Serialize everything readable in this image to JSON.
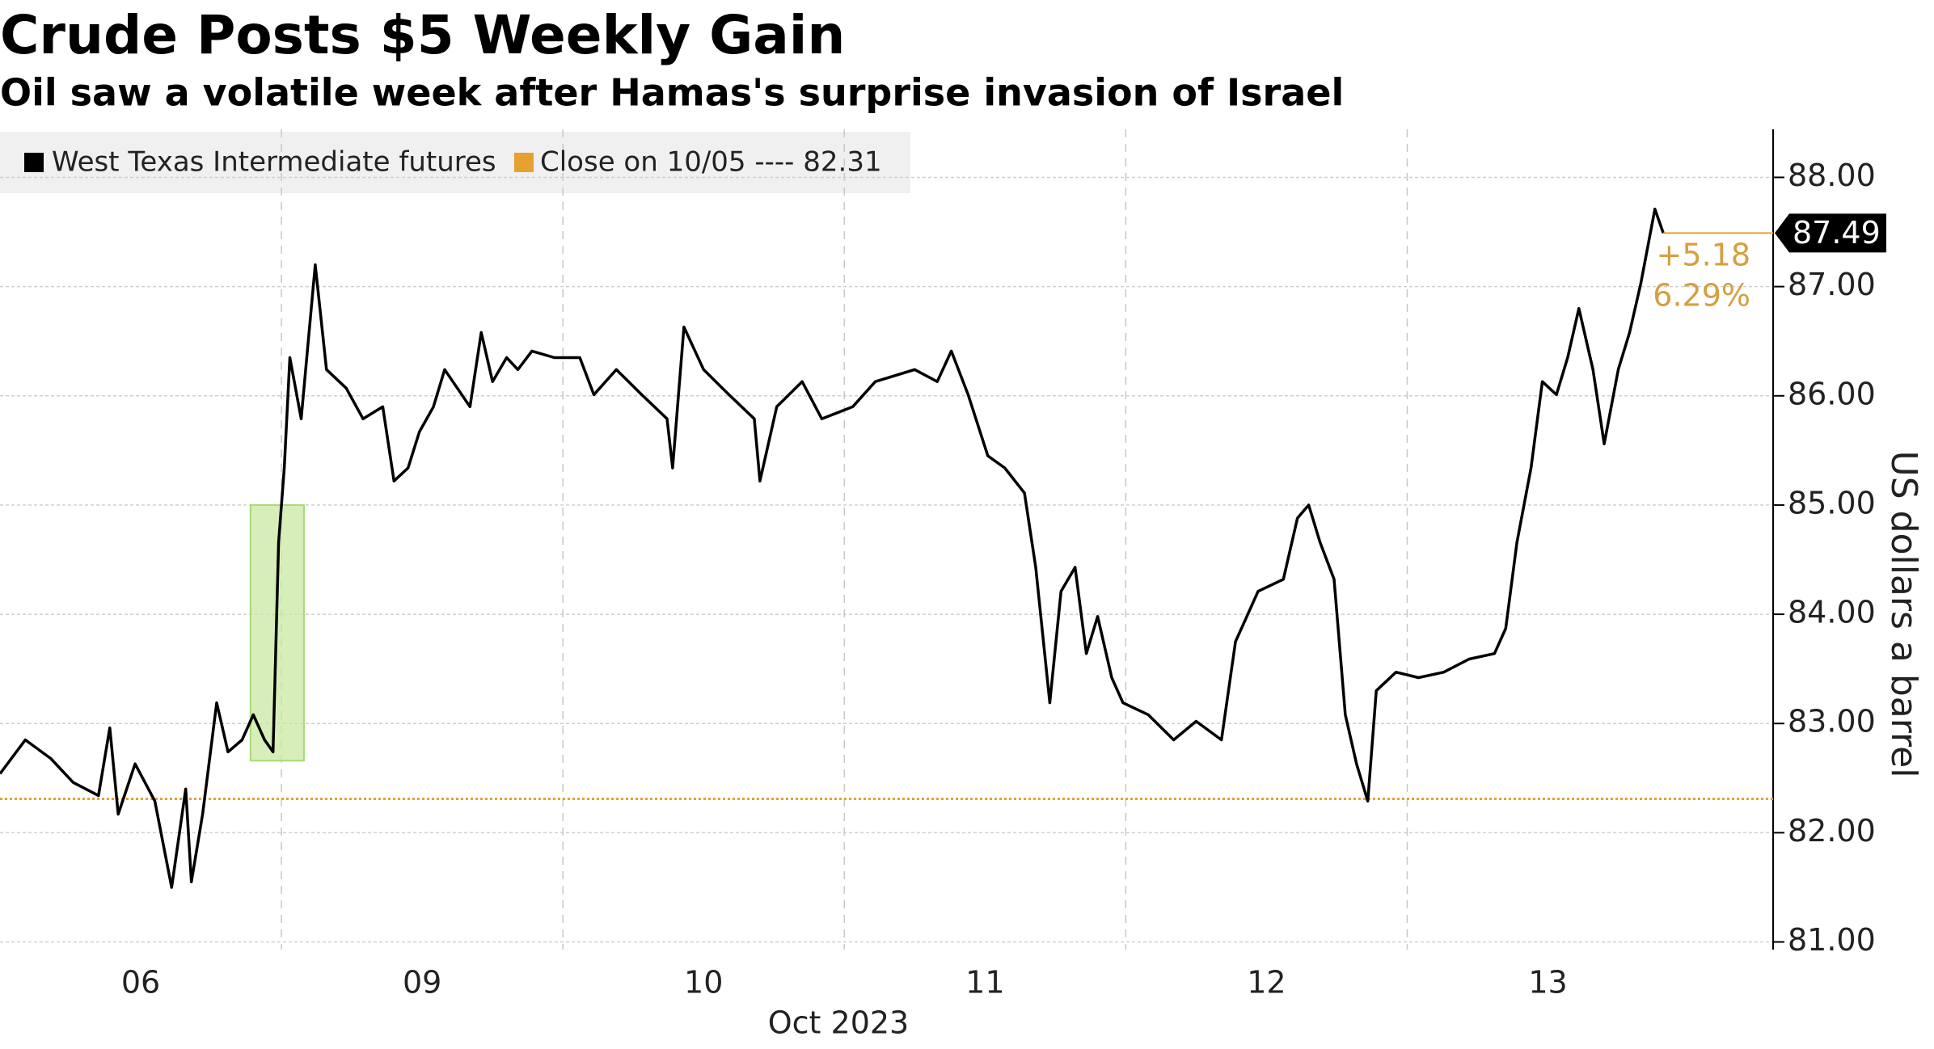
{
  "chart_data": {
    "type": "line",
    "title": "Crude Posts $5 Weekly Gain",
    "subtitle": "Oil saw a volatile week after Hamas's surprise invasion of Israel",
    "y_label": "US dollars a barrel",
    "x_label": "Oct 2023",
    "series": [
      {
        "name": "West Texas Intermediate futures",
        "color": "#000000",
        "x": [
          0,
          0.09,
          0.18,
          0.26,
          0.35,
          0.39,
          0.42,
          0.48,
          0.55,
          0.61,
          0.66,
          0.68,
          0.72,
          0.77,
          0.81,
          0.86,
          0.9,
          0.94,
          0.97,
          0.99,
          1.01,
          1.03,
          1.07,
          1.12,
          1.16,
          1.23,
          1.29,
          1.36,
          1.4,
          1.45,
          1.49,
          1.54,
          1.58,
          1.67,
          1.71,
          1.75,
          1.8,
          1.84,
          1.89,
          1.97,
          2.06,
          2.11,
          2.19,
          2.28,
          2.37,
          2.39,
          2.43,
          2.5,
          2.59,
          2.68,
          2.7,
          2.76,
          2.85,
          2.92,
          3.03,
          3.11,
          3.25,
          3.33,
          3.38,
          3.44,
          3.51,
          3.57,
          3.64,
          3.68,
          3.73,
          3.77,
          3.82,
          3.86,
          3.9,
          3.95,
          3.99,
          4.08,
          4.17,
          4.25,
          4.34,
          4.39,
          4.43,
          4.47,
          4.56,
          4.61,
          4.65,
          4.69,
          4.74,
          4.78,
          4.82,
          4.86,
          4.89,
          4.96,
          5.04,
          5.13,
          5.22,
          5.31,
          5.35,
          5.39,
          5.44,
          5.48,
          5.53,
          5.57,
          5.61,
          5.66,
          5.7,
          5.75,
          5.79,
          5.83,
          5.88,
          5.91
        ],
        "values": [
          82.54,
          82.85,
          82.68,
          82.46,
          82.34,
          82.96,
          82.17,
          82.63,
          82.29,
          81.5,
          82.4,
          81.55,
          82.17,
          83.19,
          82.74,
          82.85,
          83.08,
          82.85,
          82.74,
          84.66,
          85.34,
          86.35,
          85.79,
          87.2,
          86.24,
          86.07,
          85.79,
          85.9,
          85.22,
          85.34,
          85.67,
          85.9,
          86.24,
          85.9,
          86.58,
          86.13,
          86.35,
          86.24,
          86.41,
          86.35,
          86.35,
          86.01,
          86.24,
          86.01,
          85.79,
          85.34,
          86.63,
          86.24,
          86.01,
          85.79,
          85.22,
          85.9,
          86.13,
          85.79,
          85.9,
          86.13,
          86.24,
          86.13,
          86.41,
          86.01,
          85.45,
          85.34,
          85.11,
          84.43,
          83.19,
          84.21,
          84.43,
          83.64,
          83.98,
          83.42,
          83.19,
          83.08,
          82.85,
          83.02,
          82.85,
          83.75,
          83.98,
          84.21,
          84.32,
          84.88,
          85.0,
          84.66,
          84.32,
          83.08,
          82.63,
          82.29,
          83.3,
          83.47,
          83.42,
          83.47,
          83.59,
          83.64,
          83.87,
          84.66,
          85.34,
          86.13,
          86.01,
          86.35,
          86.8,
          86.24,
          85.56,
          86.24,
          86.58,
          87.03,
          87.71,
          87.49
        ]
      }
    ],
    "reference_line": {
      "name": "Close on 10/05 ---- 82.31",
      "value": 82.31,
      "color": "#e8a030"
    },
    "annotations": [
      "+5.18",
      "6.29%"
    ],
    "annotation_color": "#d4a040",
    "highlight": {
      "x": [
        0.89,
        1.08
      ],
      "y": [
        82.66,
        85.0
      ],
      "color": "#c8eaa0"
    },
    "xlim": [
      0,
      6.3
    ],
    "xticks": [
      {
        "value": 0.5,
        "label": "06"
      },
      {
        "value": 1.5,
        "label": "09"
      },
      {
        "value": 2.5,
        "label": "10"
      },
      {
        "value": 3.5,
        "label": "11"
      },
      {
        "value": 4.5,
        "label": "12"
      },
      {
        "value": 5.5,
        "label": "13"
      }
    ],
    "xgrid": [
      1,
      2,
      3,
      4,
      5
    ],
    "ylim": [
      80.93,
      88.44
    ],
    "yticks": [
      {
        "value": 81,
        "label": "81.00"
      },
      {
        "value": 82,
        "label": "82.00"
      },
      {
        "value": 83,
        "label": "83.00"
      },
      {
        "value": 84,
        "label": "84.00"
      },
      {
        "value": 85,
        "label": "85.00"
      },
      {
        "value": 86,
        "label": "86.00"
      },
      {
        "value": 87,
        "label": "87.00"
      },
      {
        "value": 88,
        "label": "88.00"
      }
    ],
    "grid": true
  }
}
